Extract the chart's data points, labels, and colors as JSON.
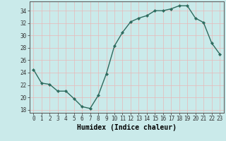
{
  "x": [
    0,
    1,
    2,
    3,
    4,
    5,
    6,
    7,
    8,
    9,
    10,
    11,
    12,
    13,
    14,
    15,
    16,
    17,
    18,
    19,
    20,
    21,
    22,
    23
  ],
  "y": [
    24.5,
    22.3,
    22.1,
    21.0,
    21.0,
    19.8,
    18.5,
    18.2,
    20.3,
    23.8,
    28.3,
    30.5,
    32.2,
    32.8,
    33.2,
    34.0,
    34.0,
    34.3,
    34.8,
    34.8,
    32.8,
    32.1,
    28.8,
    27.0
  ],
  "line_color": "#2e6b5e",
  "marker": "D",
  "marker_size": 2.2,
  "line_width": 1.0,
  "bg_color": "#caeaea",
  "grid_color": "#e8b8b8",
  "xlabel": "Humidex (Indice chaleur)",
  "ylim": [
    17.5,
    35.5
  ],
  "yticks": [
    18,
    20,
    22,
    24,
    26,
    28,
    30,
    32,
    34
  ],
  "xticks": [
    0,
    1,
    2,
    3,
    4,
    5,
    6,
    7,
    8,
    9,
    10,
    11,
    12,
    13,
    14,
    15,
    16,
    17,
    18,
    19,
    20,
    21,
    22,
    23
  ],
  "tick_fontsize": 5.5,
  "label_fontsize": 7.0
}
